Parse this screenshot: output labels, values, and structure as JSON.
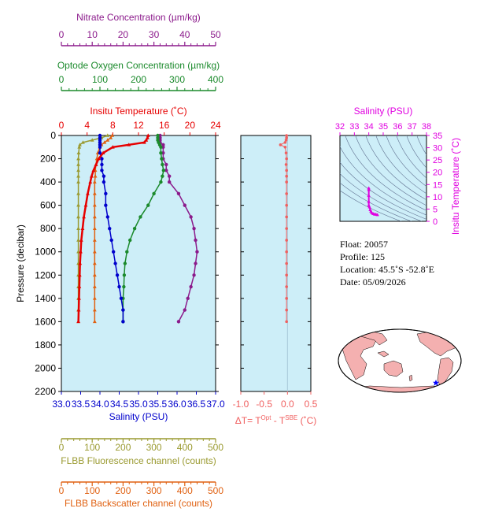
{
  "colors": {
    "background_panel": "#cdeef8",
    "nitrate": "#8b1a8b",
    "oxygen": "#1b8a2c",
    "temperature": "#e60000",
    "salinity": "#0000cc",
    "fluorescence": "#9a9a30",
    "backscatter": "#e06010",
    "delta_t": "#f06060",
    "ts_axis": "#e000e0",
    "ts_iso": "#607090",
    "land": "#f4b0b0",
    "ocean": "#ffffff",
    "float_marker": "#0000ff"
  },
  "float_info": {
    "float": "Float:  20057",
    "profile": "Profile:  125",
    "location": "Location:  45.5˚S  -52.8˚E",
    "date": "Date:  05/09/2026"
  },
  "chart_data": [
    {
      "type": "line",
      "name": "profile-panel",
      "ylabel": "Pressure (decibar)",
      "ylim": [
        2200,
        0
      ],
      "y_ticks": [
        "0",
        "200",
        "400",
        "600",
        "800",
        "1000",
        "1200",
        "1400",
        "1600",
        "1800",
        "2000",
        "2200"
      ],
      "pressure": [
        0,
        20,
        40,
        60,
        80,
        100,
        150,
        200,
        250,
        300,
        350,
        400,
        500,
        600,
        700,
        800,
        900,
        1000,
        1100,
        1200,
        1300,
        1400,
        1500,
        1600
      ],
      "axes": [
        {
          "name": "temperature",
          "label": "Insitu Temperature (˚C)",
          "position": "top",
          "xlim": [
            0,
            24
          ],
          "ticks": [
            "0",
            "4",
            "8",
            "12",
            "16",
            "20",
            "24"
          ],
          "tick_values": [
            0,
            4,
            8,
            12,
            16,
            20,
            24
          ],
          "values": [
            13.5,
            13.4,
            13.2,
            12.9,
            10.5,
            8.0,
            6.5,
            5.8,
            5.4,
            5.0,
            4.7,
            4.5,
            4.1,
            3.8,
            3.5,
            3.3,
            3.1,
            3.0,
            2.9,
            2.85,
            2.8,
            2.75,
            2.7,
            2.65
          ]
        },
        {
          "name": "salinity",
          "label": "Salinity (PSU)",
          "position": "bottom",
          "xlim": [
            33.0,
            37.0
          ],
          "ticks": [
            "33.0",
            "33.5",
            "34.0",
            "34.5",
            "35.0",
            "35.5",
            "36.0",
            "36.5",
            "37.0"
          ],
          "tick_values": [
            33.0,
            33.5,
            34.0,
            34.5,
            35.0,
            35.5,
            36.0,
            36.5,
            37.0
          ],
          "values": [
            34.0,
            34.0,
            34.0,
            34.0,
            34.0,
            34.0,
            34.0,
            34.05,
            34.05,
            34.05,
            34.1,
            34.1,
            34.15,
            34.15,
            34.2,
            34.25,
            34.3,
            34.35,
            34.4,
            34.45,
            34.5,
            34.55,
            34.6,
            34.6
          ]
        },
        {
          "name": "oxygen",
          "label": "Optode Oxygen Concentration (µm/kg)",
          "position": "top",
          "xlim": [
            0,
            400
          ],
          "ticks": [
            "0",
            "100",
            "200",
            "300",
            "400"
          ],
          "tick_values": [
            0,
            100,
            200,
            300,
            400
          ],
          "values": [
            250,
            250,
            250,
            252,
            255,
            258,
            258,
            260,
            262,
            265,
            262,
            258,
            240,
            225,
            205,
            190,
            178,
            170,
            165,
            163,
            162,
            160,
            160,
            160
          ]
        },
        {
          "name": "nitrate",
          "label": "Nitrate Concentration (µm/kg)",
          "position": "top",
          "xlim": [
            0,
            50
          ],
          "ticks": [
            "0",
            "10",
            "20",
            "30",
            "40",
            "50"
          ],
          "tick_values": [
            0,
            10,
            20,
            30,
            40,
            50
          ],
          "values": [
            32,
            32,
            32,
            32,
            33,
            33,
            33,
            33,
            34,
            34,
            35,
            35,
            38,
            40,
            42,
            43,
            43.5,
            44,
            43.5,
            43,
            42,
            41,
            40,
            38
          ]
        },
        {
          "name": "fluorescence",
          "label": "FLBB Fluorescence channel (counts)",
          "position": "bottom",
          "xlim": [
            0,
            500
          ],
          "ticks": [
            "0",
            "100",
            "200",
            "300",
            "400",
            "500"
          ],
          "tick_values": [
            0,
            100,
            200,
            300,
            400,
            500
          ],
          "values": [
            150,
            130,
            100,
            70,
            60,
            58,
            56,
            55,
            55,
            55,
            55,
            55,
            55,
            55,
            55,
            55,
            55,
            55,
            55,
            55,
            55,
            55,
            55,
            55
          ]
        },
        {
          "name": "backscatter",
          "label": "FLBB Backscatter channel (counts)",
          "position": "bottom",
          "xlim": [
            0,
            500
          ],
          "ticks": [
            "0",
            "100",
            "200",
            "300",
            "400",
            "500"
          ],
          "tick_values": [
            0,
            100,
            200,
            300,
            400,
            500
          ],
          "values": [
            165,
            160,
            150,
            140,
            130,
            125,
            118,
            115,
            112,
            110,
            110,
            108,
            108,
            108,
            108,
            108,
            108,
            108,
            108,
            108,
            108,
            108,
            108,
            108
          ]
        }
      ]
    },
    {
      "type": "scatter",
      "name": "delta-t-panel",
      "xlabel_main": "ΔT= T",
      "xlabel_sup1": "Opt",
      "xlabel_mid": " - T",
      "xlabel_sup2": "SBE",
      "xlabel_end": " (˚C)",
      "xlim": [
        -1.0,
        0.5
      ],
      "ylim": [
        2200,
        0
      ],
      "ticks": [
        "-1.0",
        "-0.5",
        "0.0",
        "0.5"
      ],
      "tick_values": [
        -1.0,
        -0.5,
        0.0,
        0.5
      ],
      "pressure": [
        0,
        20,
        40,
        60,
        80,
        100,
        150,
        200,
        250,
        300,
        350,
        400,
        500,
        600,
        700,
        800,
        900,
        1000,
        1100,
        1200,
        1300,
        1400,
        1500,
        1600
      ],
      "values": [
        -0.02,
        -0.02,
        -0.03,
        -0.05,
        -0.15,
        -0.05,
        -0.03,
        -0.02,
        -0.03,
        -0.02,
        -0.02,
        -0.02,
        -0.02,
        -0.02,
        -0.02,
        -0.02,
        -0.02,
        -0.02,
        -0.02,
        -0.02,
        -0.02,
        -0.02,
        -0.02,
        -0.02
      ]
    },
    {
      "type": "scatter",
      "name": "ts-diagram",
      "xlabel": "Salinity (PSU)",
      "ylabel": "Insitu Temperature (˚C)",
      "xlim": [
        32,
        38
      ],
      "ylim": [
        0,
        35
      ],
      "x_ticks": [
        "32",
        "33",
        "34",
        "35",
        "36",
        "37",
        "38"
      ],
      "x_tick_values": [
        32,
        33,
        34,
        35,
        36,
        37,
        38
      ],
      "y_ticks": [
        "0",
        "5",
        "10",
        "15",
        "20",
        "25",
        "30",
        "35"
      ],
      "y_tick_values": [
        0,
        5,
        10,
        15,
        20,
        25,
        30,
        35
      ],
      "x": [
        34.0,
        34.0,
        34.0,
        34.0,
        34.0,
        34.05,
        34.1,
        34.15,
        34.2,
        34.3,
        34.4,
        34.5,
        34.6
      ],
      "y": [
        13.5,
        12.9,
        10.5,
        8.0,
        6.5,
        5.8,
        4.7,
        4.1,
        3.5,
        3.1,
        2.9,
        2.8,
        2.65
      ]
    }
  ]
}
